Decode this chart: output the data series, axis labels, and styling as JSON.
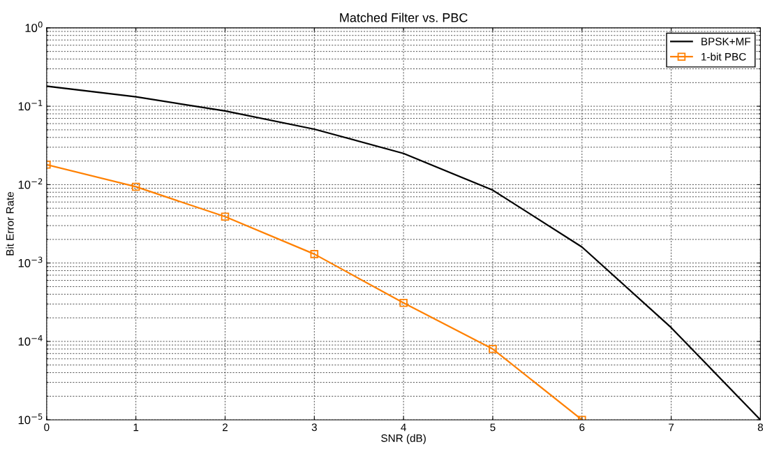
{
  "chart_data": {
    "type": "line",
    "title": "Matched Filter vs. PBC",
    "xlabel": "SNR (dB)",
    "ylabel": "Bit Error Rate",
    "x": [
      0,
      1,
      2,
      3,
      4,
      5,
      6,
      7,
      8
    ],
    "series": [
      {
        "name": "BPSK+MF",
        "color": "#000000",
        "marker": "none",
        "values": [
          0.18,
          0.132,
          0.087,
          0.051,
          0.025,
          0.0085,
          0.0016,
          0.00015,
          1e-05
        ]
      },
      {
        "name": "1-bit PBC",
        "color": "#ff8000",
        "marker": "square",
        "values": [
          0.018,
          0.0094,
          0.0039,
          0.0013,
          0.00031,
          8e-05,
          1e-05,
          null,
          null
        ]
      }
    ],
    "log": "y",
    "xlim": [
      0,
      8
    ],
    "xticks": [
      0,
      1,
      2,
      3,
      4,
      5,
      6,
      7,
      8
    ],
    "ylim": [
      1e-05,
      1
    ],
    "yticks": [
      {
        "value": 1e-05,
        "label": "10$^{−5}$"
      },
      {
        "value": 0.0001,
        "label": "10$^{−4}$"
      },
      {
        "value": 0.001,
        "label": "10$^{−3}$"
      },
      {
        "value": 0.01,
        "label": "10$^{−2}$"
      },
      {
        "value": 0.1,
        "label": "10$^{−1}$"
      },
      {
        "value": 1,
        "label": "10$^{0}$"
      }
    ],
    "grid": true,
    "legend": "top right",
    "line_style": "solid"
  }
}
